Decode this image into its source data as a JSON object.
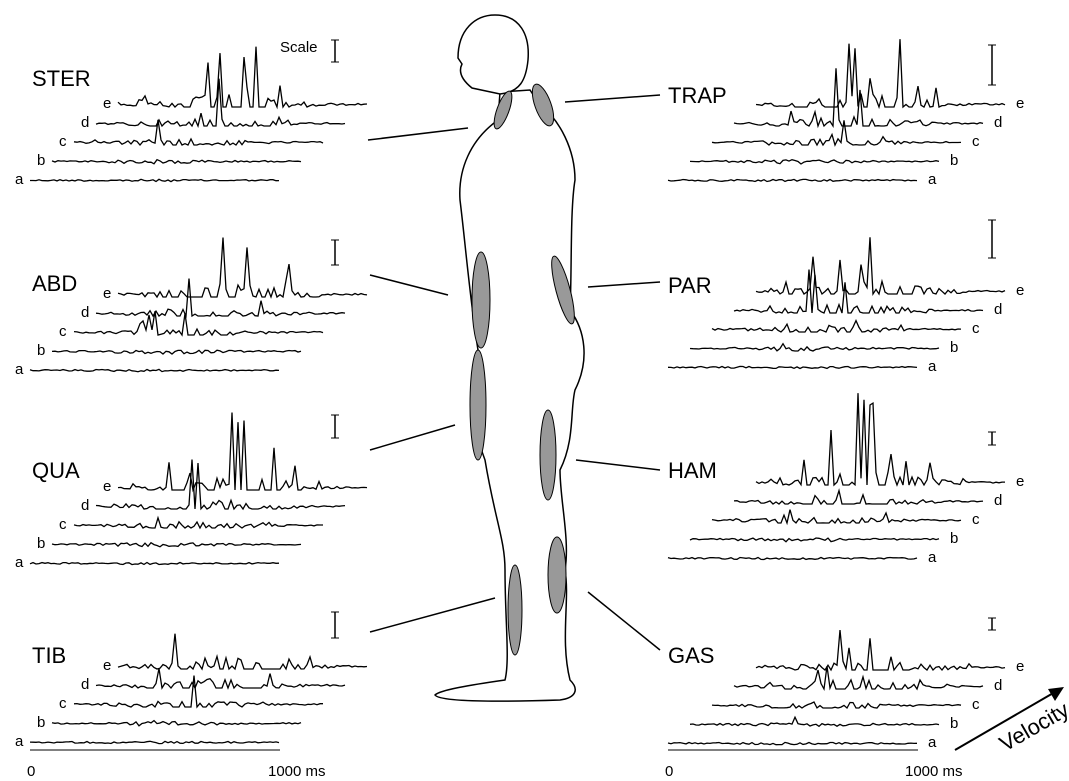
{
  "figure": {
    "scale_label": "Scale",
    "panels": [
      {
        "label": "STER",
        "traces": [
          "a",
          "b",
          "c",
          "d",
          "e"
        ]
      },
      {
        "label": "ABD",
        "traces": [
          "a",
          "b",
          "c",
          "d",
          "e"
        ]
      },
      {
        "label": "QUA",
        "traces": [
          "a",
          "b",
          "c",
          "d",
          "e"
        ]
      },
      {
        "label": "TIB",
        "traces": [
          "a",
          "b",
          "c",
          "d",
          "e"
        ]
      },
      {
        "label": "TRAP",
        "traces": [
          "a",
          "b",
          "c",
          "d",
          "e"
        ]
      },
      {
        "label": "PAR",
        "traces": [
          "a",
          "b",
          "c",
          "d",
          "e"
        ]
      },
      {
        "label": "HAM",
        "traces": [
          "a",
          "b",
          "c",
          "d",
          "e"
        ]
      },
      {
        "label": "GAS",
        "traces": [
          "a",
          "b",
          "c",
          "d",
          "e"
        ]
      }
    ],
    "axes": [
      {
        "start": "0",
        "end": "1000 ms"
      },
      {
        "start": "0",
        "end": "1000 ms"
      }
    ],
    "velocity_label": "Velocity"
  }
}
